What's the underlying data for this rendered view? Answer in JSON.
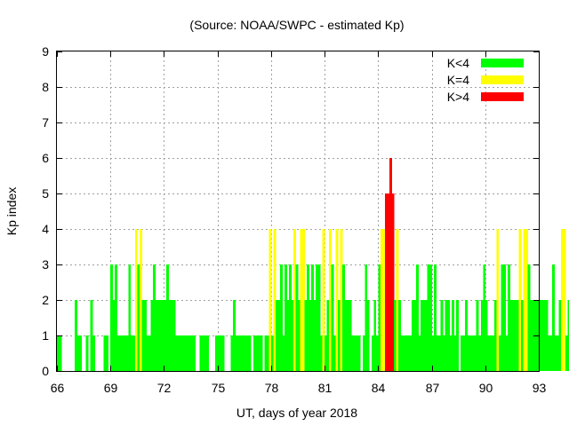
{
  "chart_data": {
    "type": "bar",
    "title": "(Source: NOAA/SWPC - estimated Kp)",
    "xlabel": "UT, days of year 2018",
    "ylabel": "Kp index",
    "xlim": [
      66,
      93
    ],
    "ylim": [
      0,
      9
    ],
    "x_ticks": [
      66,
      69,
      72,
      75,
      78,
      81,
      84,
      87,
      90,
      93
    ],
    "y_ticks": [
      0,
      1,
      2,
      3,
      4,
      5,
      6,
      7,
      8,
      9
    ],
    "grid": true,
    "bar_width_days": 0.125,
    "bar_start_day": 66,
    "legend_position": "top-right",
    "legend": [
      {
        "label": "K<4",
        "color": "#00ff00"
      },
      {
        "label": "K=4",
        "color": "#ffff00"
      },
      {
        "label": "K>4",
        "color": "#ff0000"
      }
    ],
    "thresholds": {
      "low_below": 4,
      "high_above": 4
    },
    "values": [
      1,
      1,
      0,
      0,
      0,
      0,
      0,
      0,
      2,
      1,
      1,
      0,
      0,
      1,
      0,
      2,
      1,
      0,
      0,
      0,
      0,
      1,
      1,
      0,
      3,
      2,
      3,
      1,
      1,
      1,
      1,
      1,
      3,
      1,
      1,
      4,
      3,
      4,
      2,
      2,
      1,
      1,
      2,
      3,
      2,
      2,
      2,
      2,
      2,
      3,
      2,
      2,
      2,
      1,
      1,
      1,
      1,
      1,
      1,
      1,
      1,
      1,
      0,
      0,
      1,
      1,
      1,
      1,
      0,
      0,
      0,
      1,
      1,
      1,
      1,
      0,
      0,
      0,
      1,
      2,
      1,
      1,
      1,
      1,
      1,
      1,
      1,
      0,
      1,
      1,
      1,
      1,
      0,
      1,
      1,
      4,
      1,
      4,
      2,
      2,
      3,
      1,
      3,
      2,
      3,
      2,
      4,
      3,
      2,
      4,
      4,
      2,
      3,
      2,
      3,
      2,
      3,
      3,
      1,
      4,
      1,
      2,
      4,
      3,
      1,
      4,
      2,
      4,
      3,
      2,
      2,
      2,
      1,
      1,
      1,
      1,
      0,
      1,
      3,
      2,
      0,
      1,
      2,
      1,
      3,
      4,
      4,
      5,
      5,
      6,
      5,
      2,
      4,
      2,
      1,
      1,
      1,
      1,
      1,
      2,
      2,
      3,
      1,
      2,
      2,
      2,
      3,
      3,
      1,
      3,
      1,
      1,
      2,
      1,
      2,
      2,
      1,
      2,
      1,
      2,
      0,
      1,
      1,
      2,
      1,
      1,
      1,
      1,
      2,
      1,
      2,
      3,
      2,
      1,
      1,
      1,
      2,
      4,
      1,
      3,
      3,
      1,
      3,
      2,
      2,
      2,
      2,
      4,
      2,
      4,
      4,
      3,
      2,
      2,
      2,
      2,
      2,
      2,
      2,
      2,
      1,
      1,
      3,
      1,
      1,
      2,
      4,
      4,
      1,
      2,
      2,
      1,
      2,
      4,
      2,
      2,
      3,
      4,
      3,
      3,
      3,
      3,
      3,
      1,
      3,
      3,
      2,
      2,
      3,
      2,
      3,
      2,
      2,
      2,
      3,
      3,
      2,
      3,
      2,
      2,
      1,
      1,
      1,
      1,
      1,
      0,
      0,
      0,
      1,
      1,
      1,
      0,
      0,
      0,
      0,
      0,
      0,
      0,
      0,
      0,
      0,
      0,
      0,
      0,
      1,
      1,
      1,
      1,
      1,
      1,
      1,
      2,
      1,
      2,
      1,
      1,
      2,
      1,
      1,
      2,
      1,
      1,
      1,
      2,
      1,
      1,
      1,
      1,
      1,
      3,
      2,
      1,
      2,
      2,
      1,
      1,
      1,
      2,
      2,
      1,
      2,
      2,
      1,
      1,
      2,
      1,
      2,
      1,
      1,
      2,
      1,
      1,
      2,
      1,
      1,
      1,
      1,
      1,
      1,
      1,
      2,
      1,
      1,
      1,
      1,
      1,
      2,
      1,
      1
    ]
  }
}
